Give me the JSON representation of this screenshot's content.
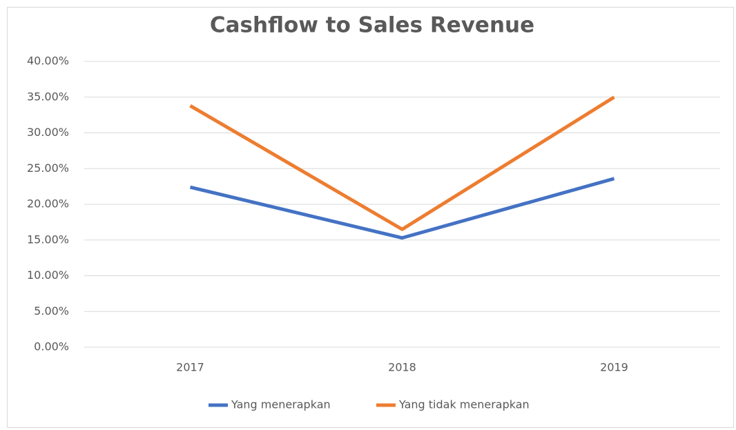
{
  "chart_data": {
    "type": "line",
    "title": "Cashflow to Sales Revenue",
    "categories": [
      "2017",
      "2018",
      "2019"
    ],
    "series": [
      {
        "name": "Yang menerapkan",
        "color": "#4472c4",
        "values": [
          22.4,
          15.3,
          23.6
        ]
      },
      {
        "name": "Yang tidak menerapkan",
        "color": "#ed7d31",
        "values": [
          33.8,
          16.5,
          35.0
        ]
      }
    ],
    "ylim": [
      0,
      40
    ],
    "yticks": [
      {
        "value": 0,
        "label": "0.00%"
      },
      {
        "value": 5,
        "label": "5.00%"
      },
      {
        "value": 10,
        "label": "10.00%"
      },
      {
        "value": 15,
        "label": "15.00%"
      },
      {
        "value": 20,
        "label": "20.00%"
      },
      {
        "value": 25,
        "label": "25.00%"
      },
      {
        "value": 30,
        "label": "30.00%"
      },
      {
        "value": 35,
        "label": "35.00%"
      },
      {
        "value": 40,
        "label": "40.00%"
      }
    ],
    "grid": true,
    "legend": "bottom"
  }
}
